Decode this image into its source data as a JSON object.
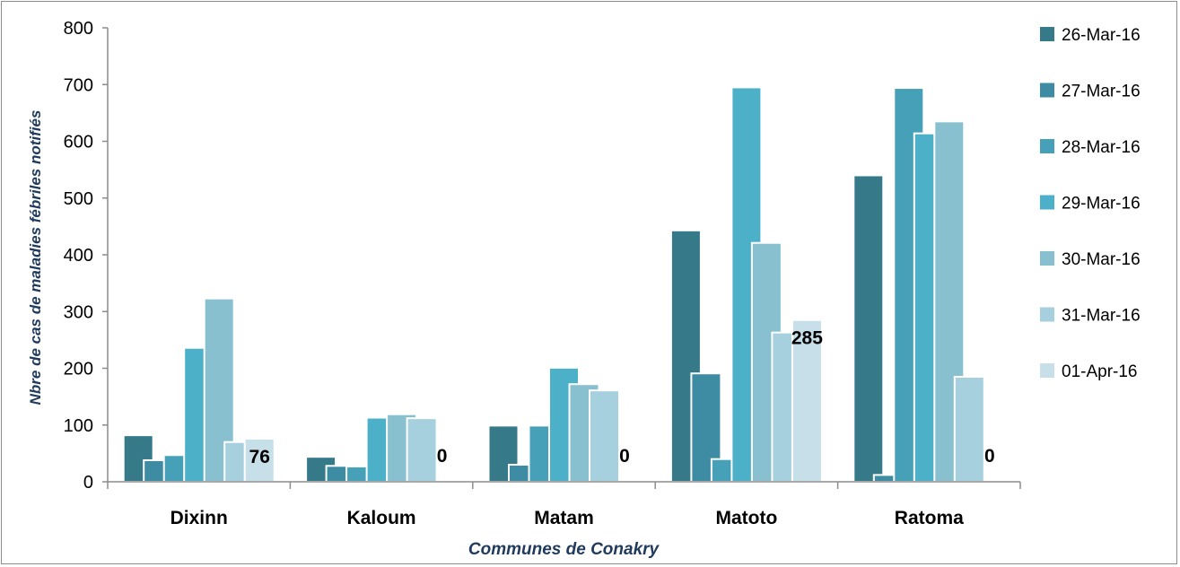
{
  "chart_data": {
    "type": "bar",
    "categories": [
      "Dixinn",
      "Kaloum",
      "Matam",
      "Matoto",
      "Ratoma"
    ],
    "series": [
      {
        "name": "26-Mar-16",
        "color": "#367a8a",
        "values": [
          82,
          44,
          99,
          443,
          540
        ]
      },
      {
        "name": "27-Mar-16",
        "color": "#3d8ca3",
        "values": [
          38,
          28,
          30,
          191,
          12
        ]
      },
      {
        "name": "28-Mar-16",
        "color": "#45a0b8",
        "values": [
          47,
          27,
          99,
          40,
          694
        ]
      },
      {
        "name": "29-Mar-16",
        "color": "#4cb0c8",
        "values": [
          236,
          113,
          201,
          695,
          614
        ]
      },
      {
        "name": "30-Mar-16",
        "color": "#88c0d0",
        "values": [
          323,
          119,
          172,
          421,
          635
        ]
      },
      {
        "name": "31-Mar-16",
        "color": "#a7d0de",
        "values": [
          70,
          112,
          161,
          263,
          185
        ]
      },
      {
        "name": "01-Apr-16",
        "color": "#c7dfe8",
        "values": [
          76,
          0,
          0,
          285,
          0
        ]
      }
    ],
    "data_labels": [
      "76",
      "0",
      "0",
      "285",
      "0"
    ],
    "xlabel": "Communes de Conakry",
    "ylabel": "Nbre de cas de maladies fébriles notifiés",
    "ylim": [
      0,
      800
    ],
    "yticks": [
      "0",
      "100",
      "200",
      "300",
      "400",
      "500",
      "600",
      "700",
      "800"
    ],
    "grid": false,
    "legend_position": "right"
  }
}
